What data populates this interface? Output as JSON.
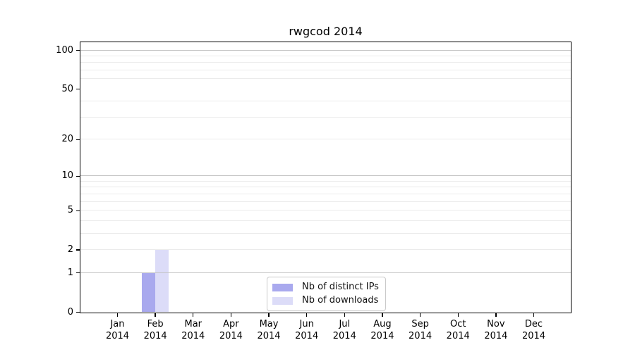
{
  "chart_data": {
    "type": "bar",
    "title": "rwgcod 2014",
    "x": {
      "months": [
        "Jan",
        "Feb",
        "Mar",
        "Apr",
        "May",
        "Jun",
        "Jul",
        "Aug",
        "Sep",
        "Oct",
        "Nov",
        "Dec"
      ],
      "year": "2014"
    },
    "series": [
      {
        "name": "Nb of distinct IPs",
        "color": "#a9a9ee",
        "values": [
          0,
          1,
          0,
          0,
          0,
          0,
          0,
          0,
          0,
          0,
          0,
          0
        ]
      },
      {
        "name": "Nb of downloads",
        "color": "#dcdcf8",
        "values": [
          0,
          2,
          0,
          0,
          0,
          0,
          0,
          0,
          0,
          0,
          0,
          0
        ]
      }
    ],
    "y_axis": {
      "scale": "log1p",
      "ticks": [
        0,
        1,
        2,
        5,
        10,
        20,
        50,
        100
      ],
      "minor_gridlines": [
        2,
        3,
        4,
        5,
        6,
        7,
        8,
        9,
        20,
        30,
        40,
        60,
        70,
        80,
        90
      ],
      "major_gridlines": [
        1,
        10,
        100
      ],
      "range": [
        0,
        115
      ]
    },
    "legend": {
      "position": "lower center"
    },
    "grid": true,
    "colors": {
      "spine": "#000000",
      "minor_grid": "#ebebeb",
      "major_grid": "#c3c3c3",
      "text": "#000000",
      "background": "#ffffff"
    }
  }
}
